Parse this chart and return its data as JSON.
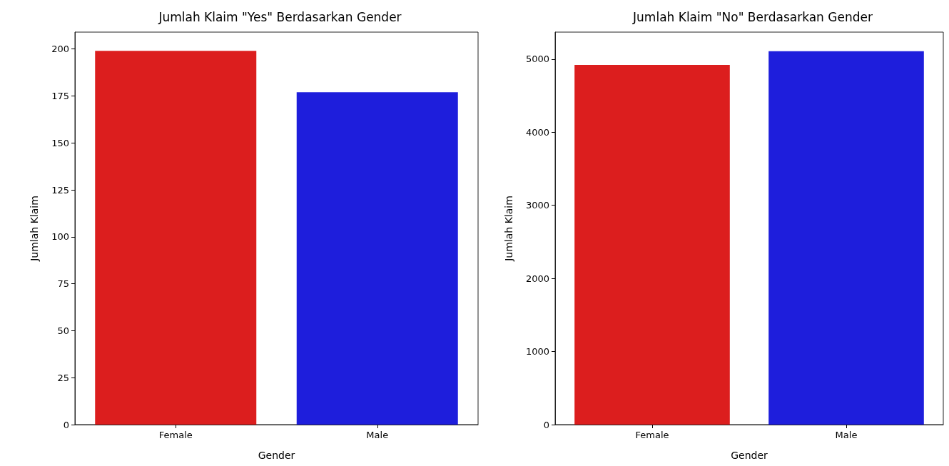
{
  "chart_data": [
    {
      "type": "bar",
      "title": "Jumlah Klaim \"Yes\" Berdasarkan Gender",
      "xlabel": "Gender",
      "ylabel": "Jumlah Klaim",
      "categories": [
        "Female",
        "Male"
      ],
      "values": [
        199,
        177
      ],
      "colors": [
        "#dc1e1e",
        "#1e1edc"
      ],
      "ylim": [
        0,
        209
      ],
      "yticks": [
        0,
        25,
        50,
        75,
        100,
        125,
        150,
        175,
        200
      ]
    },
    {
      "type": "bar",
      "title": "Jumlah Klaim \"No\" Berdasarkan Gender",
      "xlabel": "Gender",
      "ylabel": "Jumlah Klaim",
      "categories": [
        "Female",
        "Male"
      ],
      "values": [
        4920,
        5110
      ],
      "colors": [
        "#dc1e1e",
        "#1e1edc"
      ],
      "ylim": [
        0,
        5370
      ],
      "yticks": [
        0,
        1000,
        2000,
        3000,
        4000,
        5000
      ]
    }
  ]
}
